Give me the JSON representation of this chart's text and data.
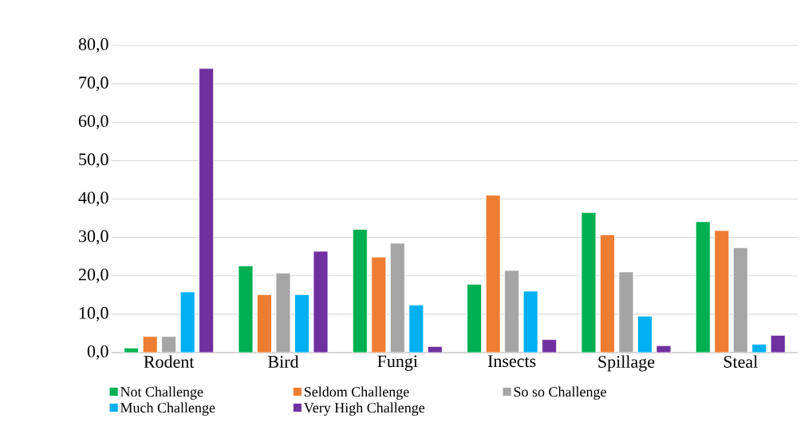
{
  "chart_data": {
    "type": "bar",
    "categories": [
      "Rodent",
      "Bird",
      "Fungi",
      "Insects",
      "Spillage",
      "Steal"
    ],
    "series": [
      {
        "name": "Not Challenge",
        "color": "#00b050",
        "values": [
          1.2,
          22.6,
          32.1,
          17.8,
          36.5,
          34.1
        ]
      },
      {
        "name": "Seldom Challenge",
        "color": "#ed7d31",
        "values": [
          4.2,
          15.1,
          24.9,
          41.0,
          30.7,
          31.8
        ]
      },
      {
        "name": "So so Challenge",
        "color": "#a5a5a5",
        "values": [
          4.2,
          20.7,
          28.5,
          21.4,
          21.0,
          27.3
        ]
      },
      {
        "name": "Much Challenge",
        "color": "#00b0f0",
        "values": [
          15.8,
          15.1,
          12.4,
          16.0,
          9.5,
          2.2
        ]
      },
      {
        "name": "Very High Challenge",
        "color": "#7030a0",
        "values": [
          74.0,
          26.4,
          1.6,
          3.4,
          1.8,
          4.5
        ]
      }
    ],
    "ylim": [
      0,
      80
    ],
    "yticks": [
      {
        "value": 0,
        "label": "0,0"
      },
      {
        "value": 10,
        "label": "10,0"
      },
      {
        "value": 20,
        "label": "20,0"
      },
      {
        "value": 30,
        "label": "30,0"
      },
      {
        "value": 40,
        "label": "40,0"
      },
      {
        "value": 50,
        "label": "50,0"
      },
      {
        "value": 60,
        "label": "60,0"
      },
      {
        "value": 70,
        "label": "70,0"
      },
      {
        "value": 80,
        "label": "80,0"
      }
    ],
    "grid": "y",
    "legend": "bottom"
  }
}
